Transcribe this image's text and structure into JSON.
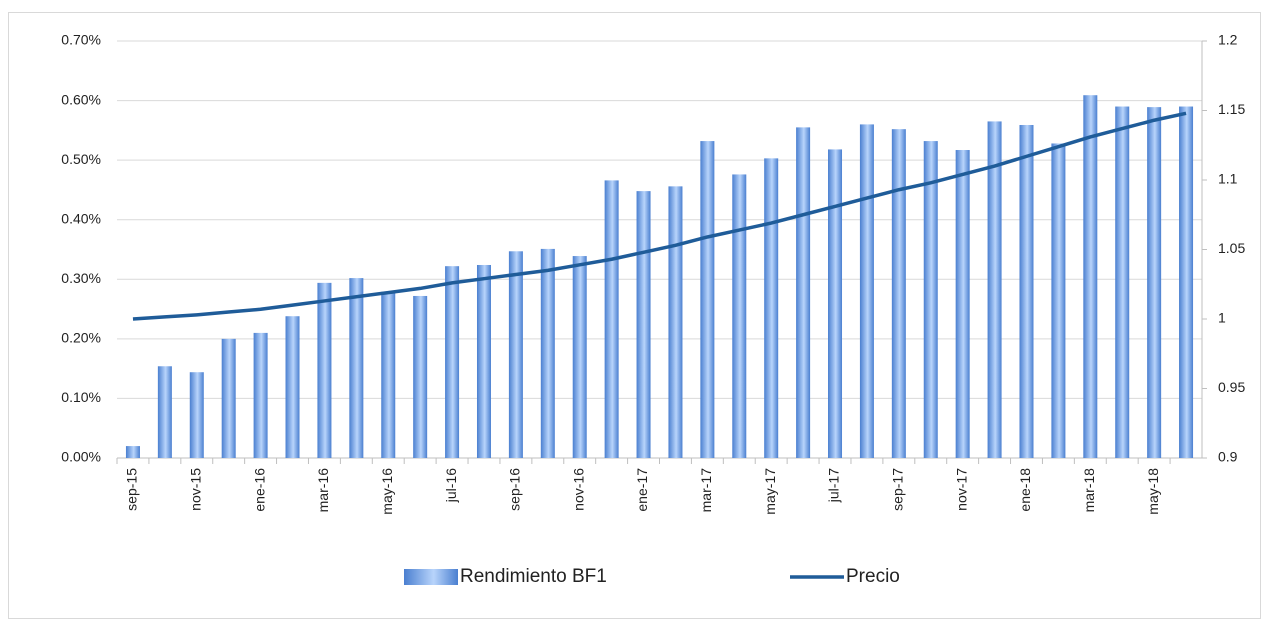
{
  "chart_data": {
    "type": "bar-line",
    "categories": [
      "sep-15",
      null,
      "nov-15",
      null,
      "ene-16",
      null,
      "mar-16",
      null,
      "may-16",
      null,
      "jul-16",
      null,
      "sep-16",
      null,
      "nov-16",
      null,
      "ene-17",
      null,
      "mar-17",
      null,
      "may-17",
      null,
      "jul-17",
      null,
      "sep-17",
      null,
      "nov-17",
      null,
      "ene-18",
      null,
      "mar-18",
      null,
      "may-18",
      null
    ],
    "series": [
      {
        "name": "Rendimiento BF1",
        "type": "bar",
        "color": "#4a7fd0",
        "values": [
          0.02,
          0.154,
          0.144,
          0.2,
          0.21,
          0.238,
          0.294,
          0.302,
          0.279,
          0.272,
          0.322,
          0.324,
          0.347,
          0.351,
          0.339,
          0.466,
          0.448,
          0.456,
          0.532,
          0.476,
          0.503,
          0.555,
          0.518,
          0.56,
          0.552,
          0.532,
          0.517,
          0.565,
          0.559,
          0.528,
          0.609,
          0.59,
          0.589,
          0.59
        ]
      },
      {
        "name": "Precio",
        "type": "line",
        "axis": "y2",
        "color": "#1f5c99",
        "values": [
          1.0,
          1.0015,
          1.003,
          1.005,
          1.007,
          1.01,
          1.013,
          1.016,
          1.019,
          1.022,
          1.026,
          1.029,
          1.032,
          1.035,
          1.039,
          1.043,
          1.048,
          1.053,
          1.059,
          1.064,
          1.069,
          1.075,
          1.081,
          1.087,
          1.093,
          1.098,
          1.104,
          1.11,
          1.117,
          1.124,
          1.131,
          1.137,
          1.143,
          1.148
        ]
      }
    ],
    "ylim": [
      0,
      0.7
    ],
    "yticks": [
      {
        "value": 0,
        "label": "0.00%"
      },
      {
        "value": 0.1,
        "label": "0.10%"
      },
      {
        "value": 0.2,
        "label": "0.20%"
      },
      {
        "value": 0.3,
        "label": "0.30%"
      },
      {
        "value": 0.4,
        "label": "0.40%"
      },
      {
        "value": 0.5,
        "label": "0.50%"
      },
      {
        "value": 0.6,
        "label": "0.60%"
      },
      {
        "value": 0.7,
        "label": "0.70%"
      }
    ],
    "y2lim": [
      0.9,
      1.2
    ],
    "y2ticks": [
      0.9,
      0.95,
      1,
      1.05,
      1.1,
      1.15,
      1.2
    ],
    "grid": true,
    "legend": "bottom"
  }
}
